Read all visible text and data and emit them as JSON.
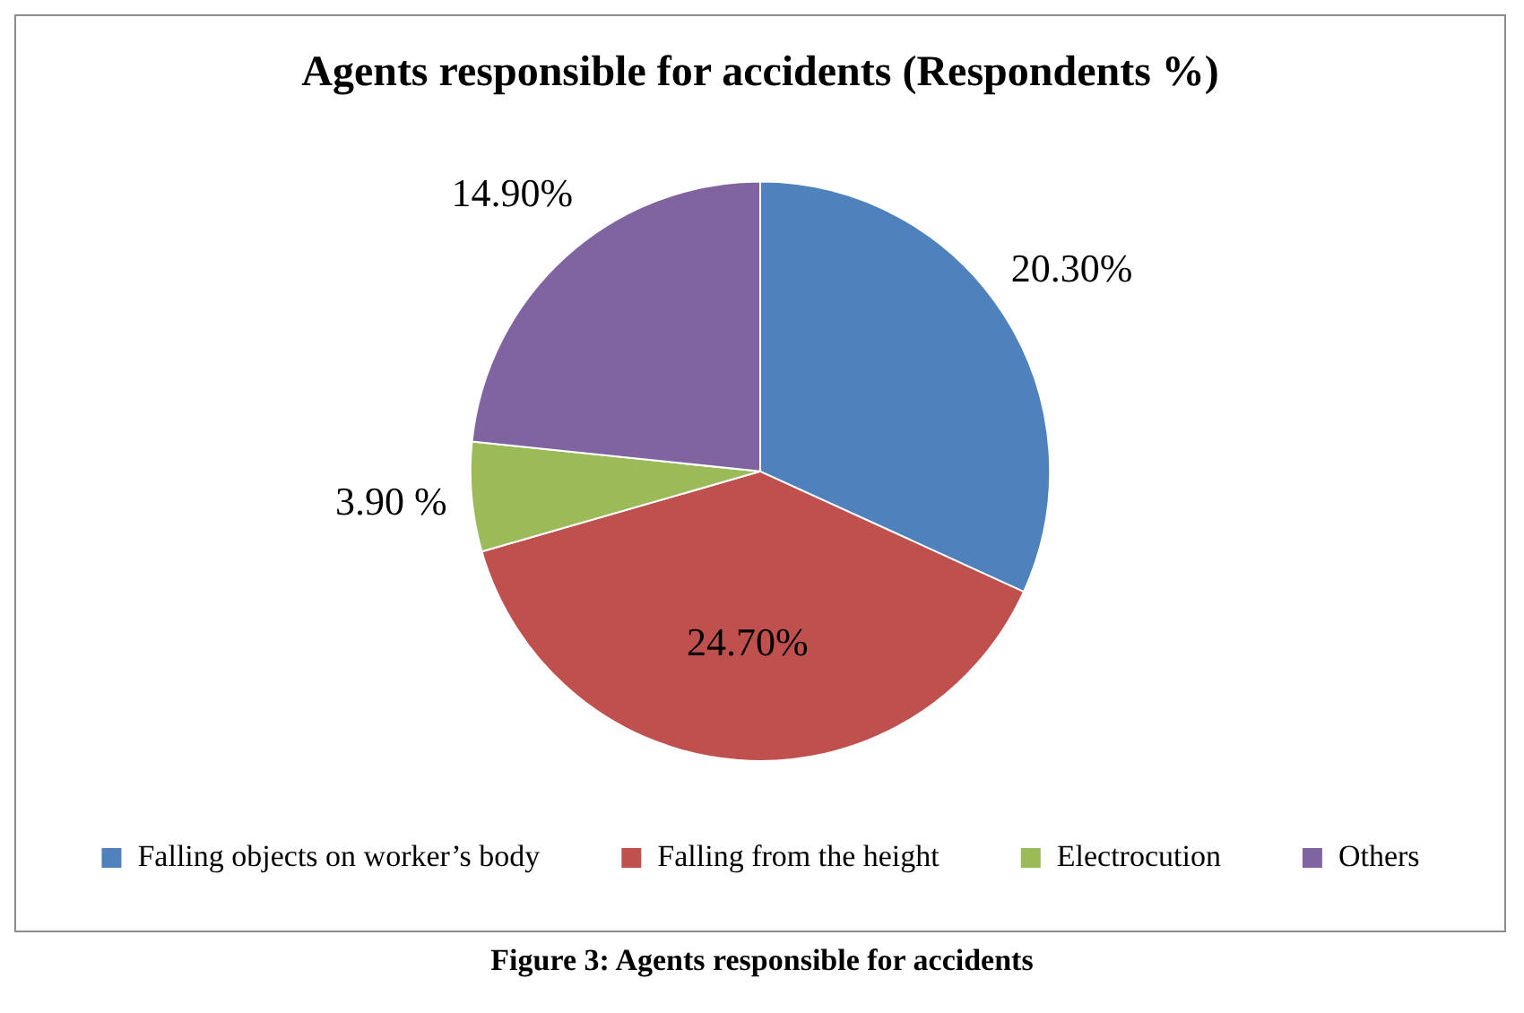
{
  "chart_data": {
    "type": "pie",
    "title": "Agents responsible for accidents (Respondents %)",
    "categories": [
      "Falling objects on worker’s body",
      "Falling from the height",
      "Electrocution",
      "Others"
    ],
    "values": [
      20.3,
      24.7,
      3.9,
      14.9
    ],
    "colors": [
      "#4f81bd",
      "#c0504d",
      "#9bbb59",
      "#8064a2"
    ],
    "value_labels": [
      "20.30%",
      "24.70%",
      "3.90 %",
      "14.90%"
    ],
    "legend": "bottom",
    "annotations": [
      "Figure 3: Agents responsible for accidents"
    ]
  }
}
